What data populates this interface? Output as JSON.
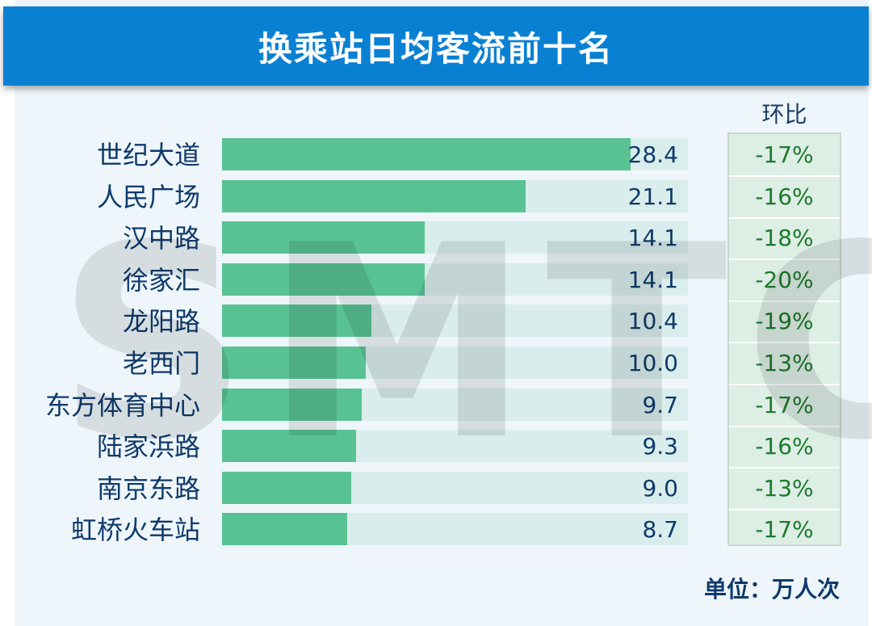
{
  "header": {
    "title": "换乘站日均客流前十名"
  },
  "watermark": "SMTCC",
  "mom_header": "环比",
  "unit_label": "单位：万人次",
  "colors": {
    "header_bg": "#0a80d2",
    "bar": "#58c293",
    "track": "#d9eeec",
    "mom_text": "#1d7a2c",
    "label_text": "#0f3a6a"
  },
  "chart_data": {
    "type": "bar",
    "orientation": "horizontal",
    "title": "换乘站日均客流前十名",
    "unit": "万人次",
    "categories": [
      "世纪大道",
      "人民广场",
      "汉中路",
      "徐家汇",
      "龙阳路",
      "老西门",
      "东方体育中心",
      "陆家浜路",
      "南京东路",
      "虹桥火车站"
    ],
    "values": [
      28.4,
      21.1,
      14.1,
      14.1,
      10.4,
      10.0,
      9.7,
      9.3,
      9.0,
      8.7
    ],
    "value_labels": [
      "28.4",
      "21.1",
      "14.1",
      "14.1",
      "10.4",
      "10.0",
      "9.7",
      "9.3",
      "9.0",
      "8.7"
    ],
    "mom_labels": [
      "-17%",
      "-16%",
      "-18%",
      "-20%",
      "-19%",
      "-13%",
      "-17%",
      "-16%",
      "-13%",
      "-17%"
    ],
    "xlim": [
      0,
      32.4
    ]
  }
}
